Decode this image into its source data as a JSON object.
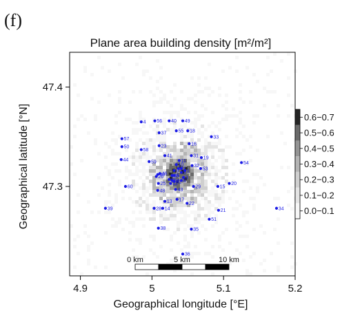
{
  "panel_label": "(f)",
  "chart_data": {
    "type": "heatmap",
    "title": "Plane area building density [m²/m²]",
    "xlabel": "Geographical longitude [°E]",
    "ylabel": "Geographical latitude [°N]",
    "xlim": [
      4.885,
      5.2
    ],
    "ylim": [
      47.21,
      47.435
    ],
    "xticks": [
      {
        "value": 4.9,
        "label": "4.9"
      },
      {
        "value": 5.0,
        "label": "5"
      },
      {
        "value": 5.1,
        "label": "5.1"
      },
      {
        "value": 5.2,
        "label": "5.2"
      }
    ],
    "yticks": [
      {
        "value": 47.3,
        "label": "47.3"
      },
      {
        "value": 47.4,
        "label": "47.4"
      }
    ],
    "grid": false,
    "colorbar": {
      "classes": [
        "0.0−0.1",
        "0.1−0.2",
        "0.2−0.3",
        "0.3−0.4",
        "0.4−0.5",
        "0.5−0.6",
        "0.6−0.7"
      ],
      "colors": [
        "#f7f7f7",
        "#e4e4e4",
        "#cfcfcf",
        "#b4b4b4",
        "#949494",
        "#6a6a6a",
        "#252525"
      ]
    },
    "scalebar": {
      "labels": [
        "0 km",
        "5 km",
        "10 km"
      ]
    },
    "points_color": "#1a1ae6",
    "points": [
      {
        "id": "1",
        "x": 5.046,
        "y": 47.316
      },
      {
        "id": "2",
        "x": 5.041,
        "y": 47.318
      },
      {
        "id": "3",
        "x": 5.044,
        "y": 47.309
      },
      {
        "id": "4",
        "x": 4.985,
        "y": 47.365
      },
      {
        "id": "5",
        "x": 5.041,
        "y": 47.314
      },
      {
        "id": "6",
        "x": 5.031,
        "y": 47.311
      },
      {
        "id": "7",
        "x": 5.037,
        "y": 47.318
      },
      {
        "id": "8",
        "x": 5.041,
        "y": 47.306
      },
      {
        "id": "9",
        "x": 5.031,
        "y": 47.316
      },
      {
        "id": "10",
        "x": 5.034,
        "y": 47.322
      },
      {
        "id": "11",
        "x": 5.038,
        "y": 47.326
      },
      {
        "id": "12",
        "x": 5.026,
        "y": 47.303
      },
      {
        "id": "13",
        "x": 5.018,
        "y": 47.285
      },
      {
        "id": "14",
        "x": 5.015,
        "y": 47.278
      },
      {
        "id": "15",
        "x": 5.092,
        "y": 47.3
      },
      {
        "id": "16",
        "x": 5.052,
        "y": 47.343
      },
      {
        "id": "17",
        "x": 5.035,
        "y": 47.287
      },
      {
        "id": "18",
        "x": 5.05,
        "y": 47.356
      },
      {
        "id": "19",
        "x": 5.069,
        "y": 47.329
      },
      {
        "id": "20",
        "x": 5.108,
        "y": 47.303
      },
      {
        "id": "21",
        "x": 5.093,
        "y": 47.276
      },
      {
        "id": "22",
        "x": 5.049,
        "y": 47.283
      },
      {
        "id": "23",
        "x": 5.01,
        "y": 47.341
      },
      {
        "id": "24",
        "x": 5.028,
        "y": 47.306
      },
      {
        "id": "25",
        "x": 5.009,
        "y": 47.303
      },
      {
        "id": "26",
        "x": 5.006,
        "y": 47.31
      },
      {
        "id": "27",
        "x": 5.024,
        "y": 47.307
      },
      {
        "id": "28",
        "x": 5.003,
        "y": 47.278
      },
      {
        "id": "29",
        "x": 5.058,
        "y": 47.3
      },
      {
        "id": "30",
        "x": 5.008,
        "y": 47.312
      },
      {
        "id": "31",
        "x": 5.055,
        "y": 47.331
      },
      {
        "id": "32",
        "x": 5.056,
        "y": 47.321
      },
      {
        "id": "33",
        "x": 5.083,
        "y": 47.35
      },
      {
        "id": "34",
        "x": 5.174,
        "y": 47.278
      },
      {
        "id": "35",
        "x": 5.055,
        "y": 47.257
      },
      {
        "id": "36",
        "x": 5.043,
        "y": 47.232
      },
      {
        "id": "37",
        "x": 5.01,
        "y": 47.354
      },
      {
        "id": "38",
        "x": 5.009,
        "y": 47.258
      },
      {
        "id": "39",
        "x": 4.935,
        "y": 47.278
      },
      {
        "id": "40",
        "x": 5.024,
        "y": 47.366
      },
      {
        "id": "41",
        "x": 5.018,
        "y": 47.331
      },
      {
        "id": "43",
        "x": 5.033,
        "y": 47.297
      },
      {
        "id": "44",
        "x": 4.957,
        "y": 47.327
      },
      {
        "id": "45",
        "x": 5.028,
        "y": 47.311
      },
      {
        "id": "46",
        "x": 5.011,
        "y": 47.313
      },
      {
        "id": "48",
        "x": 5.008,
        "y": 47.296
      },
      {
        "id": "49",
        "x": 5.043,
        "y": 47.366
      },
      {
        "id": "50",
        "x": 4.958,
        "y": 47.34
      },
      {
        "id": "51",
        "x": 5.08,
        "y": 47.267
      },
      {
        "id": "52",
        "x": 5.031,
        "y": 47.305
      },
      {
        "id": "53",
        "x": 5.068,
        "y": 47.318
      },
      {
        "id": "54",
        "x": 5.125,
        "y": 47.324
      },
      {
        "id": "55",
        "x": 5.034,
        "y": 47.356
      },
      {
        "id": "56",
        "x": 5.004,
        "y": 47.366
      },
      {
        "id": "57",
        "x": 4.958,
        "y": 47.348
      },
      {
        "id": "58",
        "x": 4.985,
        "y": 47.337
      },
      {
        "id": "59",
        "x": 4.996,
        "y": 47.325
      },
      {
        "id": "60",
        "x": 4.963,
        "y": 47.3
      }
    ]
  }
}
